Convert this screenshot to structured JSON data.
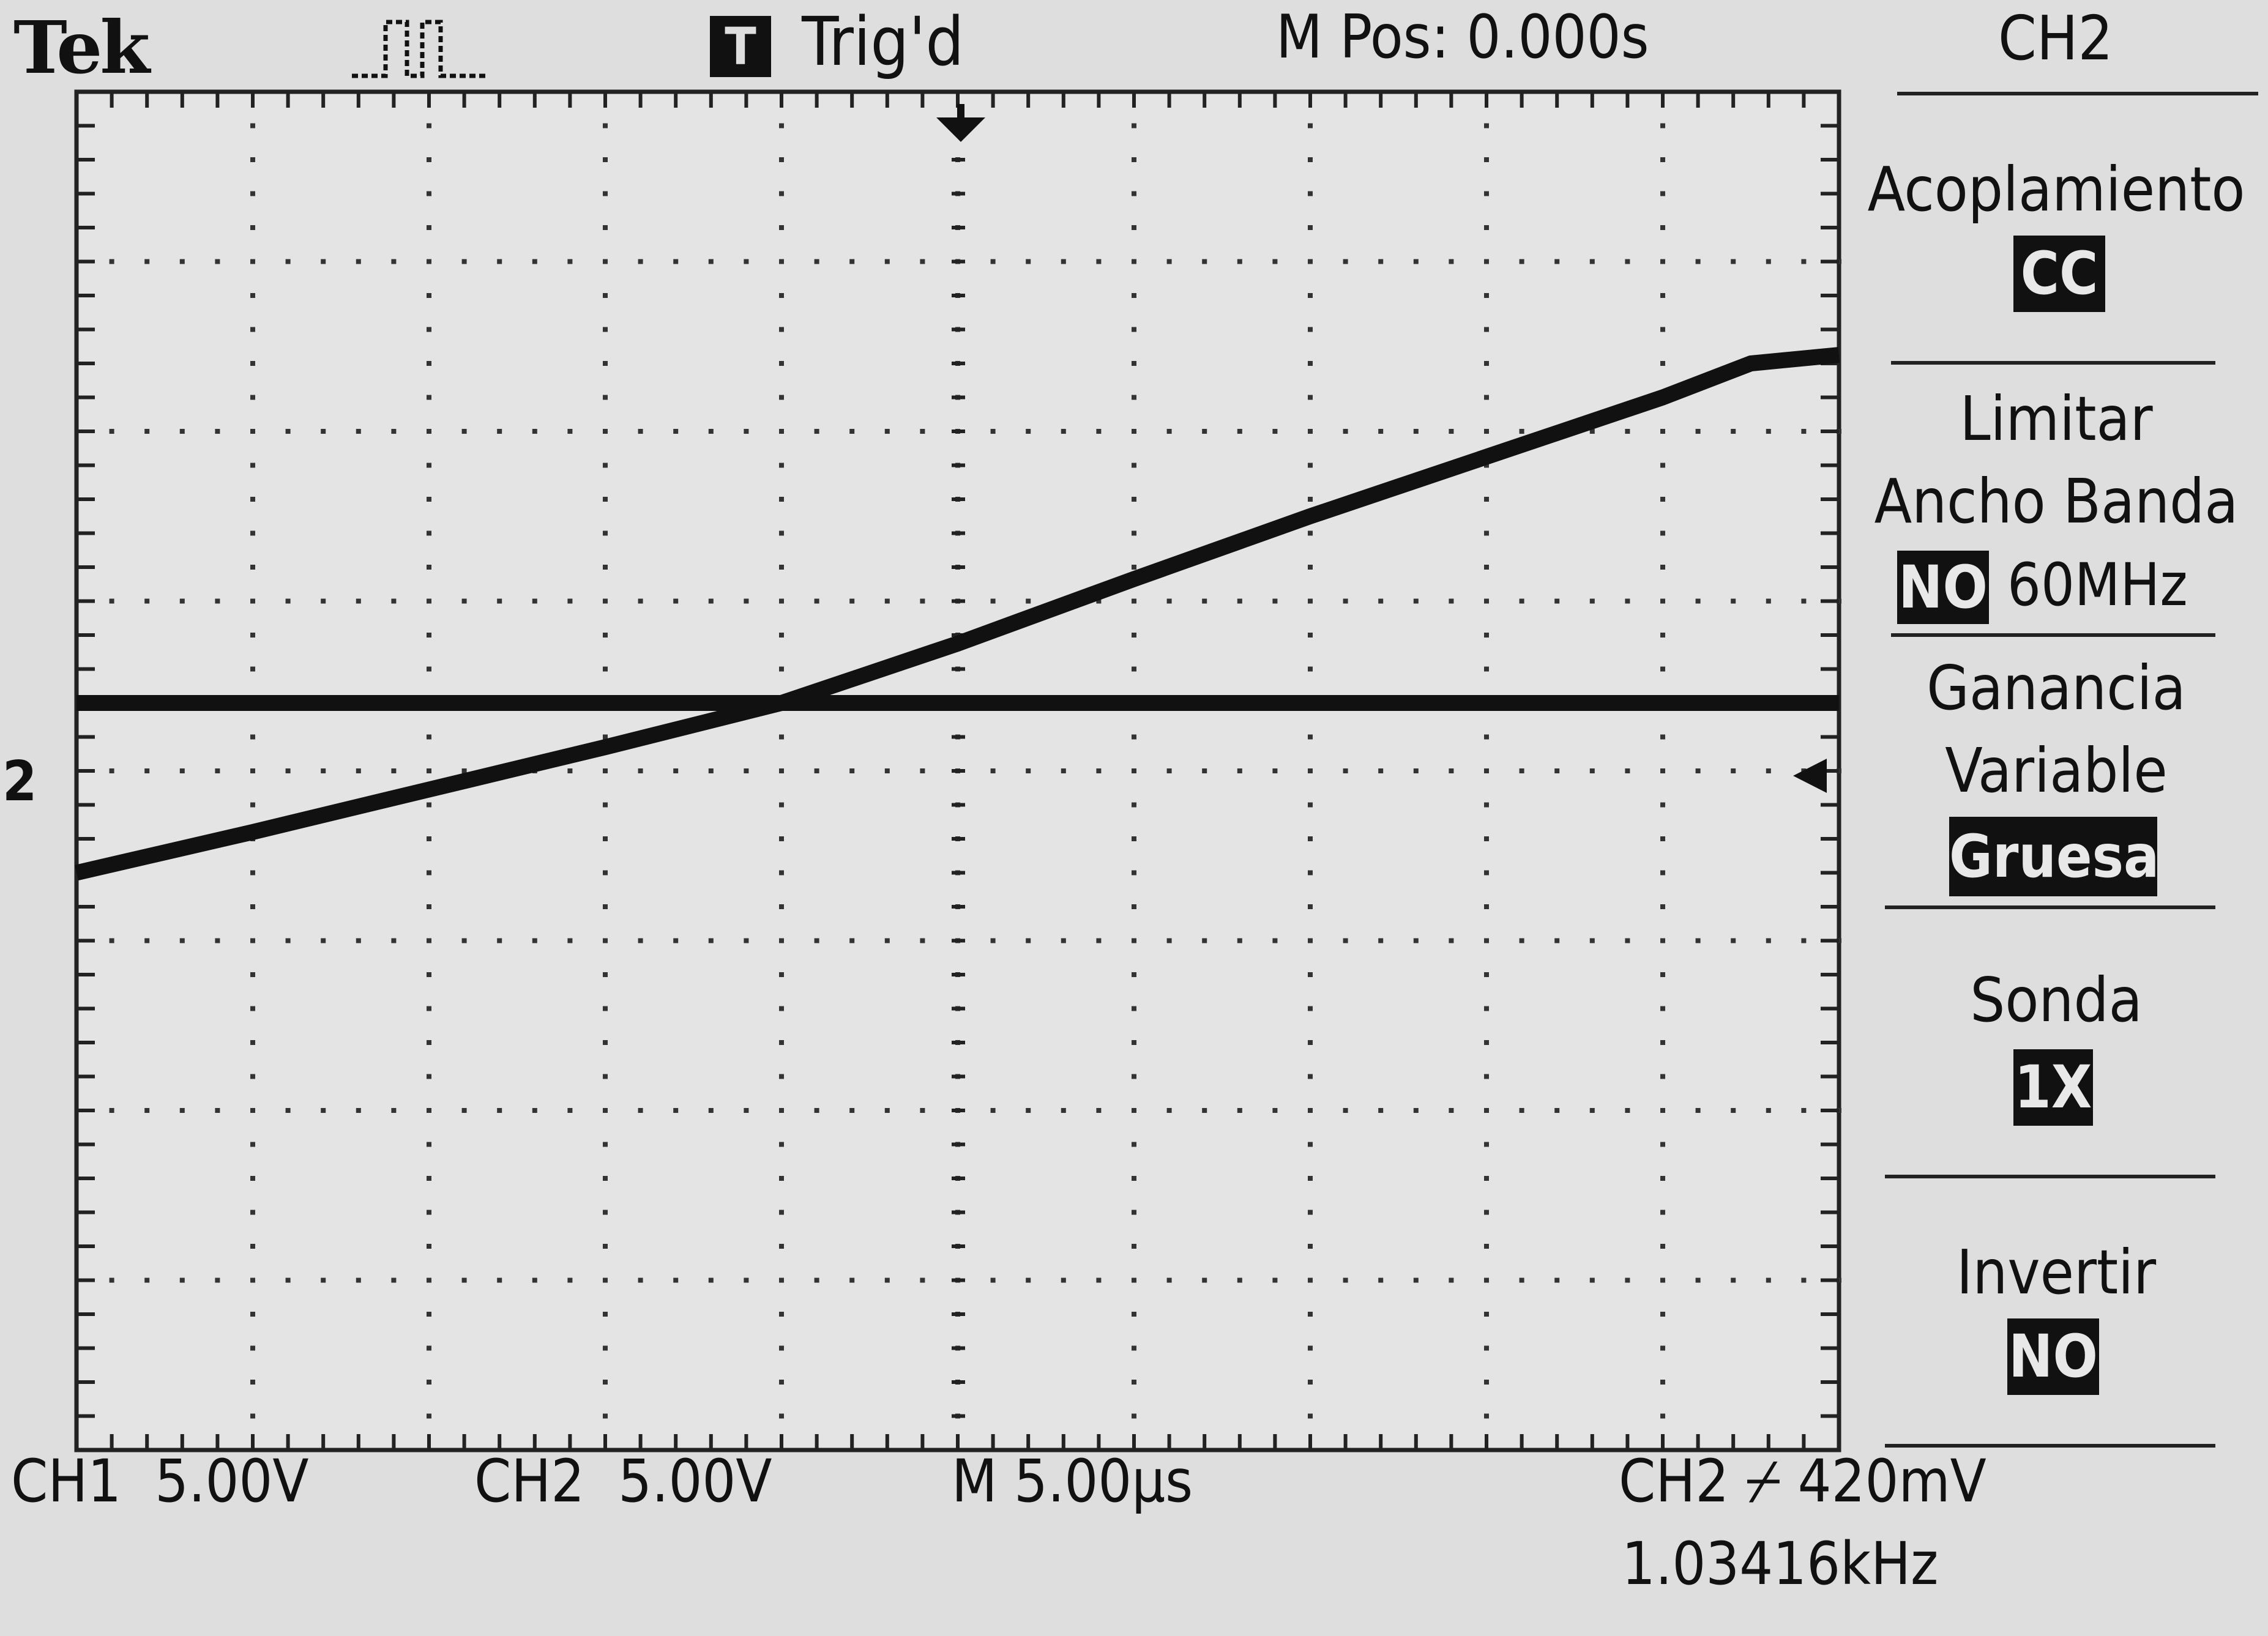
{
  "header": {
    "brand": "Tek",
    "trigger_badge": "T",
    "trigger_status": "Trig'd",
    "main_position": "M Pos: 0.000s",
    "channel": "CH2"
  },
  "menu": {
    "coupling": {
      "label": "Acoplamiento",
      "value": "CC"
    },
    "bandwidth": {
      "label_line1": "Limitar",
      "label_line2": "Ancho Banda",
      "selected": "NO",
      "other": "60MHz"
    },
    "gain": {
      "label_line1": "Ganancia",
      "label_line2": "Variable",
      "value": "Gruesa"
    },
    "probe": {
      "label": "Sonda",
      "value": "1X"
    },
    "invert": {
      "label": "Invertir",
      "value": "NO"
    }
  },
  "footer": {
    "ch1_scale": "CH1  5.00V",
    "ch2_scale": "CH2  5.00V",
    "timebase": "M 5.00µs",
    "trigger": "CH2 ⌿ 420mV",
    "frequency": "1.03416kHz"
  },
  "markers": {
    "ch2_ground": "2"
  },
  "chart_data": {
    "type": "line",
    "x_divisions": 10,
    "y_divisions": 8,
    "x_unit": "µs",
    "x_per_div": 5,
    "y_unit": "V",
    "y_per_div": 5,
    "series": [
      {
        "x": [
          0,
          1,
          2,
          3,
          4,
          5,
          6,
          7,
          8,
          9,
          9.5,
          10
        ],
        "y": [
          -1.0,
          -0.76,
          -0.51,
          -0.26,
          0.0,
          0.35,
          0.73,
          1.1,
          1.45,
          1.8,
          2.0,
          2.05
        ]
      },
      {
        "x": [
          0,
          10
        ],
        "y": [
          0,
          0
        ]
      }
    ],
    "colors": {
      "trace": "#111111",
      "background": "#dedede"
    }
  }
}
